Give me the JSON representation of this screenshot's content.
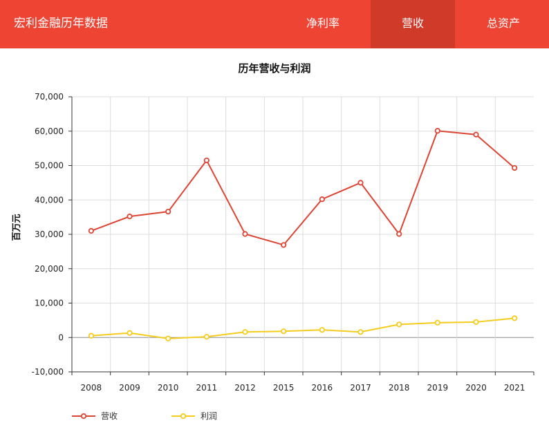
{
  "header": {
    "title": "宏利金融历年数据",
    "tabs": [
      {
        "label": "净利率",
        "active": false
      },
      {
        "label": "营收",
        "active": true
      },
      {
        "label": "总资产",
        "active": false
      }
    ],
    "bar_color": "#ee4433",
    "active_color": "#d03a29"
  },
  "chart_data": {
    "type": "line",
    "title": "历年营收与利润",
    "xlabel": "",
    "ylabel": "百万元",
    "categories": [
      "2008",
      "2009",
      "2010",
      "2011",
      "2012",
      "2015",
      "2016",
      "2017",
      "2018",
      "2019",
      "2020",
      "2021"
    ],
    "ylim": [
      -10000,
      70000
    ],
    "yticks": [
      -10000,
      0,
      10000,
      20000,
      30000,
      40000,
      50000,
      60000,
      70000
    ],
    "ytick_labels": [
      "-10,000",
      "0",
      "10,000",
      "20,000",
      "30,000",
      "40,000",
      "50,000",
      "60,000",
      "70,000"
    ],
    "grid": true,
    "legend_position": "bottom-left",
    "series": [
      {
        "name": "营收",
        "color": "#dd4433",
        "values": [
          31000,
          35200,
          36600,
          51500,
          30100,
          26900,
          40200,
          45000,
          30100,
          60100,
          59000,
          49300
        ]
      },
      {
        "name": "利润",
        "color": "#f5cc1b",
        "values": [
          500,
          1300,
          -300,
          200,
          1600,
          1800,
          2200,
          1600,
          3800,
          4300,
          4500,
          5600
        ]
      }
    ]
  }
}
